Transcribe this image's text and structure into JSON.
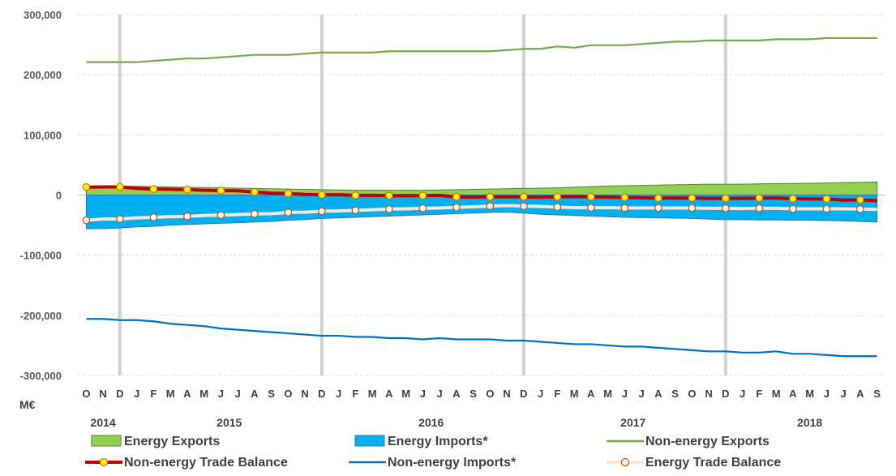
{
  "chart_data": {
    "type": "area",
    "unit_label": "M€",
    "ylim": [
      -300000,
      300000
    ],
    "y_ticks": [
      300000,
      200000,
      100000,
      0,
      -100000,
      -200000,
      -300000
    ],
    "y_tick_labels": [
      "300,000",
      "200,000",
      "100,000",
      "0",
      "-100,000",
      "-200,000",
      "-300,000"
    ],
    "grid": true,
    "month_labels": [
      "O",
      "N",
      "D",
      "J",
      "F",
      "M",
      "A",
      "M",
      "J",
      "J",
      "A",
      "S",
      "O",
      "N",
      "D",
      "J",
      "F",
      "M",
      "A",
      "M",
      "J",
      "J",
      "A",
      "S",
      "O",
      "N",
      "D",
      "J",
      "F",
      "M",
      "A",
      "M",
      "J",
      "J",
      "A",
      "S",
      "O",
      "N",
      "D",
      "J",
      "F",
      "M",
      "A",
      "M",
      "J",
      "J",
      "A",
      "S"
    ],
    "year_labels": [
      {
        "label": "2014",
        "month_index": 1
      },
      {
        "label": "2015",
        "month_index": 8.5
      },
      {
        "label": "2016",
        "month_index": 20.5
      },
      {
        "label": "2017",
        "month_index": 32.5
      },
      {
        "label": "2018",
        "month_index": 43
      }
    ],
    "year_separators": [
      2,
      14,
      26,
      38
    ],
    "series": [
      {
        "name": "Energy Exports",
        "kind": "area",
        "color": "#92D050",
        "stroke": "#548235",
        "values": [
          14000,
          14500,
          15000,
          14500,
          14000,
          13500,
          13000,
          12500,
          12000,
          11500,
          11000,
          10500,
          10000,
          9500,
          9000,
          8500,
          8000,
          8000,
          8000,
          8000,
          8000,
          8500,
          9000,
          9500,
          10000,
          10500,
          11000,
          11500,
          12000,
          13000,
          14000,
          15000,
          15500,
          16000,
          16500,
          17000,
          17500,
          18000,
          18000,
          18000,
          18500,
          19000,
          19000,
          19500,
          20000,
          20500,
          21000,
          21500
        ]
      },
      {
        "name": "Energy Imports*",
        "kind": "area",
        "color": "#00B0F0",
        "stroke": "#2E75B6",
        "values": [
          -56000,
          -56000,
          -55000,
          -53000,
          -52000,
          -50000,
          -49000,
          -48000,
          -47000,
          -46000,
          -45000,
          -44000,
          -42000,
          -41000,
          -39000,
          -38000,
          -37000,
          -36000,
          -35000,
          -34000,
          -33000,
          -32000,
          -31000,
          -30000,
          -29000,
          -28500,
          -30000,
          -32000,
          -33000,
          -34000,
          -35000,
          -36000,
          -37000,
          -37500,
          -38000,
          -38500,
          -39000,
          -40000,
          -41000,
          -41000,
          -41500,
          -41500,
          -42000,
          -42000,
          -42500,
          -43000,
          -44000,
          -45000
        ]
      },
      {
        "name": "Non-energy Exports",
        "kind": "line",
        "color": "#70AD47",
        "values": [
          221000,
          221000,
          221000,
          221000,
          223000,
          225000,
          227000,
          227000,
          229000,
          231000,
          233000,
          233000,
          233000,
          235000,
          237000,
          237000,
          237000,
          237000,
          239000,
          239000,
          239000,
          239000,
          239000,
          239000,
          239000,
          241000,
          243000,
          243000,
          247000,
          245000,
          249000,
          249000,
          249000,
          251000,
          253000,
          255000,
          255000,
          257000,
          257000,
          257000,
          257000,
          259000,
          259000,
          259000,
          261000,
          261000,
          261000,
          261000
        ]
      },
      {
        "name": "Non-energy Trade Balance",
        "kind": "line-markers",
        "color": "#C00000",
        "marker_fill": "#FFFF00",
        "values": [
          13000,
          13500,
          13500,
          11000,
          10000,
          9500,
          9000,
          8000,
          7500,
          7000,
          5000,
          3000,
          2500,
          1000,
          500,
          500,
          -500,
          -500,
          -1000,
          -1000,
          -1000,
          -500,
          -3000,
          -3500,
          -3000,
          -3000,
          -3000,
          -3500,
          -3000,
          -2500,
          -3000,
          -3500,
          -4000,
          -4500,
          -5000,
          -5000,
          -5000,
          -5500,
          -5500,
          -5500,
          -5000,
          -5000,
          -6000,
          -6500,
          -6500,
          -8500,
          -8000,
          -9500
        ]
      },
      {
        "name": "Non-energy Imports*",
        "kind": "line",
        "color": "#0070C0",
        "values": [
          -206000,
          -206000,
          -208000,
          -208000,
          -210000,
          -214000,
          -216000,
          -218000,
          -222000,
          -224000,
          -226000,
          -228000,
          -230000,
          -232000,
          -234000,
          -234000,
          -236000,
          -236000,
          -238000,
          -238000,
          -240000,
          -238000,
          -240000,
          -240000,
          -240000,
          -242000,
          -242000,
          -244000,
          -246000,
          -248000,
          -248000,
          -250000,
          -252000,
          -252000,
          -254000,
          -256000,
          -258000,
          -260000,
          -260000,
          -262000,
          -262000,
          -260000,
          -264000,
          -264000,
          -266000,
          -268000,
          -268000,
          -268000
        ]
      },
      {
        "name": "Energy Trade Balance",
        "kind": "line-markers",
        "color": "#FBE5D6",
        "marker_fill": "#FFFFFF",
        "marker_stroke": "#C55A11",
        "values": [
          -42000,
          -40000,
          -40000,
          -38000,
          -37000,
          -36000,
          -35500,
          -34000,
          -33500,
          -32500,
          -31500,
          -31000,
          -29000,
          -28500,
          -27000,
          -26500,
          -25500,
          -24500,
          -23500,
          -23000,
          -22000,
          -21500,
          -20500,
          -19500,
          -18500,
          -17500,
          -18500,
          -19000,
          -20000,
          -21000,
          -21000,
          -21000,
          -21500,
          -21500,
          -21500,
          -21500,
          -21500,
          -22000,
          -22000,
          -22500,
          -22000,
          -22000,
          -23000,
          -23000,
          -23000,
          -23000,
          -23500,
          -24000
        ]
      }
    ],
    "legend": {
      "placement": "bottom",
      "entries": [
        {
          "name": "Energy Exports",
          "kind": "area",
          "color": "#92D050",
          "stroke": "#548235"
        },
        {
          "name": "Energy Imports*",
          "kind": "area",
          "color": "#00B0F0",
          "stroke": "#2E75B6"
        },
        {
          "name": "Non-energy Exports",
          "kind": "line",
          "color": "#70AD47"
        },
        {
          "name": "Non-energy Trade Balance",
          "kind": "line-markers",
          "color": "#C00000",
          "marker_fill": "#FFFF00"
        },
        {
          "name": "Non-energy Imports*",
          "kind": "line",
          "color": "#0070C0"
        },
        {
          "name": "Energy Trade Balance",
          "kind": "line-markers",
          "color": "#FBE5D6",
          "marker_fill": "#FFFFFF",
          "marker_stroke": "#C55A11"
        }
      ]
    }
  }
}
